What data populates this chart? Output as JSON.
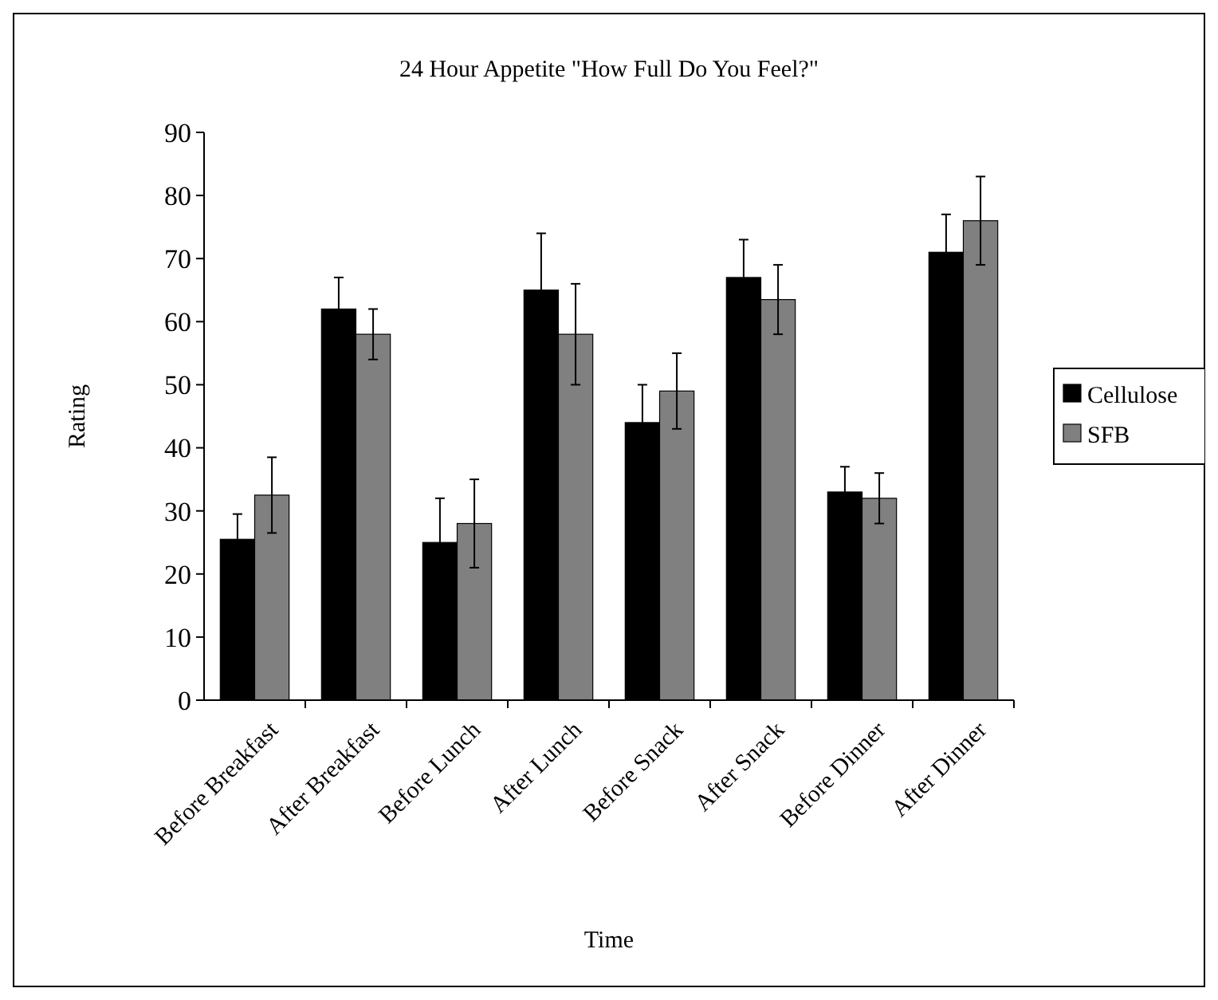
{
  "chart_data": {
    "type": "bar",
    "title": "24 Hour Appetite \"How Full Do You Feel?\"",
    "xlabel": "Time",
    "ylabel": "Rating",
    "categories": [
      "Before Breakfast",
      "After Breakfast",
      "Before Lunch",
      "After Lunch",
      "Before Snack",
      "After Snack",
      "Before Dinner",
      "After Dinner"
    ],
    "series": [
      {
        "name": "Cellulose",
        "color": "#000000",
        "values": [
          25.5,
          62,
          25,
          65,
          44,
          67,
          33,
          71
        ],
        "errors": [
          4,
          5,
          7,
          9,
          6,
          6,
          4,
          6
        ]
      },
      {
        "name": "SFB",
        "color": "#808080",
        "values": [
          32.5,
          58,
          28,
          58,
          49,
          63.5,
          32,
          76
        ],
        "errors": [
          6,
          4,
          7,
          8,
          6,
          5.5,
          4,
          7
        ]
      }
    ],
    "ylim": [
      0,
      90
    ],
    "yticks": [
      0,
      10,
      20,
      30,
      40,
      50,
      60,
      70,
      80,
      90
    ],
    "grid": false,
    "legend": "right"
  }
}
